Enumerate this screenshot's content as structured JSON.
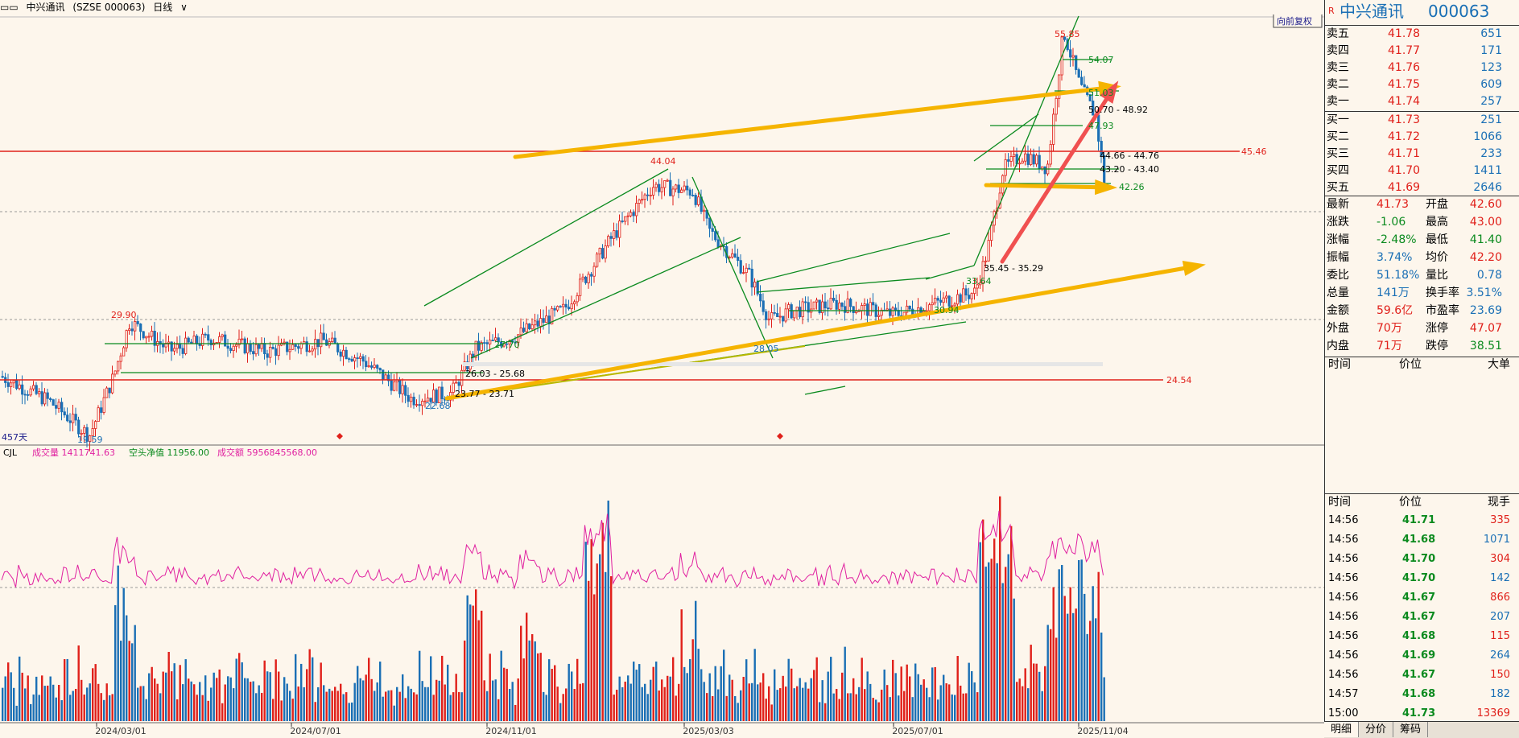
{
  "header": {
    "stock_name": "中兴通讯",
    "stock_code": "(SZSE 000063)",
    "period": "日线"
  },
  "chart": {
    "forward_button": "向前复权",
    "days_label": "457天",
    "high_label": "55.85",
    "low_label": "19.59",
    "price_labels": [
      {
        "text": "44.04"
      },
      {
        "text": "29.90"
      },
      {
        "text": "28.05"
      },
      {
        "text": "22.68"
      },
      {
        "text": "54.07"
      },
      {
        "text": "51.03"
      },
      {
        "text": "50.70 - 48.92"
      },
      {
        "text": "47.93"
      },
      {
        "text": "44.66 - 44.76"
      },
      {
        "text": "43.20 - 43.40"
      },
      {
        "text": "42.26"
      },
      {
        "text": "35.45 - 35.29"
      },
      {
        "text": "33.64"
      },
      {
        "text": "30.94"
      },
      {
        "text": "27.70"
      },
      {
        "text": "26.03 - 25.68"
      },
      {
        "text": "23.77 - 23.71"
      }
    ],
    "resistance_label": "45.46",
    "support_label": "24.54",
    "x_dates": [
      "2024/03/01",
      "2024/07/01",
      "2024/11/01",
      "2025/03/03",
      "2025/07/01",
      "2025/11/04"
    ],
    "volume_legend": {
      "name": "CJL",
      "vol_label": "成交量 1411741.63",
      "net_label": "空头净值 11956.00",
      "amt_label": "成交额 5956845568.00"
    }
  },
  "quote": {
    "name": "中兴通讯",
    "code": "000063",
    "asks": [
      {
        "label": "卖五",
        "price": "41.78",
        "vol": "651"
      },
      {
        "label": "卖四",
        "price": "41.77",
        "vol": "171"
      },
      {
        "label": "卖三",
        "price": "41.76",
        "vol": "123"
      },
      {
        "label": "卖二",
        "price": "41.75",
        "vol": "609"
      },
      {
        "label": "卖一",
        "price": "41.74",
        "vol": "257"
      }
    ],
    "bids": [
      {
        "label": "买一",
        "price": "41.73",
        "vol": "251"
      },
      {
        "label": "买二",
        "price": "41.72",
        "vol": "1066"
      },
      {
        "label": "买三",
        "price": "41.71",
        "vol": "233"
      },
      {
        "label": "买四",
        "price": "41.70",
        "vol": "1411"
      },
      {
        "label": "买五",
        "price": "41.69",
        "vol": "2646"
      }
    ],
    "stats": [
      {
        "l": "最新",
        "v": "41.73",
        "l2": "开盘",
        "v2": "42.60"
      },
      {
        "l": "涨跌",
        "v": "-1.06",
        "l2": "最高",
        "v2": "43.00"
      },
      {
        "l": "涨幅",
        "v": "-2.48%",
        "l2": "最低",
        "v2": "41.40"
      },
      {
        "l": "振幅",
        "v": "3.74%",
        "l2": "均价",
        "v2": "42.20"
      },
      {
        "l": "委比",
        "v": "51.18%",
        "l2": "量比",
        "v2": "0.78"
      },
      {
        "l": "总量",
        "v": "141万",
        "l2": "换手率",
        "v2": "3.51%"
      },
      {
        "l": "金额",
        "v": "59.6亿",
        "l2": "市盈率",
        "v2": "23.69"
      },
      {
        "l": "外盘",
        "v": "70万",
        "l2": "涨停",
        "v2": "47.07"
      },
      {
        "l": "内盘",
        "v": "71万",
        "l2": "跌停",
        "v2": "38.51"
      }
    ],
    "big_header": {
      "time": "时间",
      "price": "价位",
      "big": "大单"
    },
    "ticks_header": {
      "time": "时间",
      "price": "价位",
      "vol": "现手"
    },
    "ticks": [
      {
        "time": "14:56",
        "price": "41.71",
        "vol": "335"
      },
      {
        "time": "14:56",
        "price": "41.68",
        "vol": "1071"
      },
      {
        "time": "14:56",
        "price": "41.70",
        "vol": "304"
      },
      {
        "time": "14:56",
        "price": "41.70",
        "vol": "142"
      },
      {
        "time": "14:56",
        "price": "41.67",
        "vol": "866"
      },
      {
        "time": "14:56",
        "price": "41.67",
        "vol": "207"
      },
      {
        "time": "14:56",
        "price": "41.68",
        "vol": "115"
      },
      {
        "time": "14:56",
        "price": "41.69",
        "vol": "264"
      },
      {
        "time": "14:56",
        "price": "41.67",
        "vol": "150"
      },
      {
        "time": "14:57",
        "price": "41.68",
        "vol": "182"
      },
      {
        "time": "15:00",
        "price": "41.73",
        "vol": "13369"
      }
    ],
    "tabs": [
      "明细",
      "分价",
      "筹码"
    ]
  },
  "colors": {
    "up": "#e0201a",
    "down": "#1a6fb5",
    "trend": "#0a8a1e",
    "arrow": "#f5b400",
    "volume_line": "#e020a0"
  }
}
